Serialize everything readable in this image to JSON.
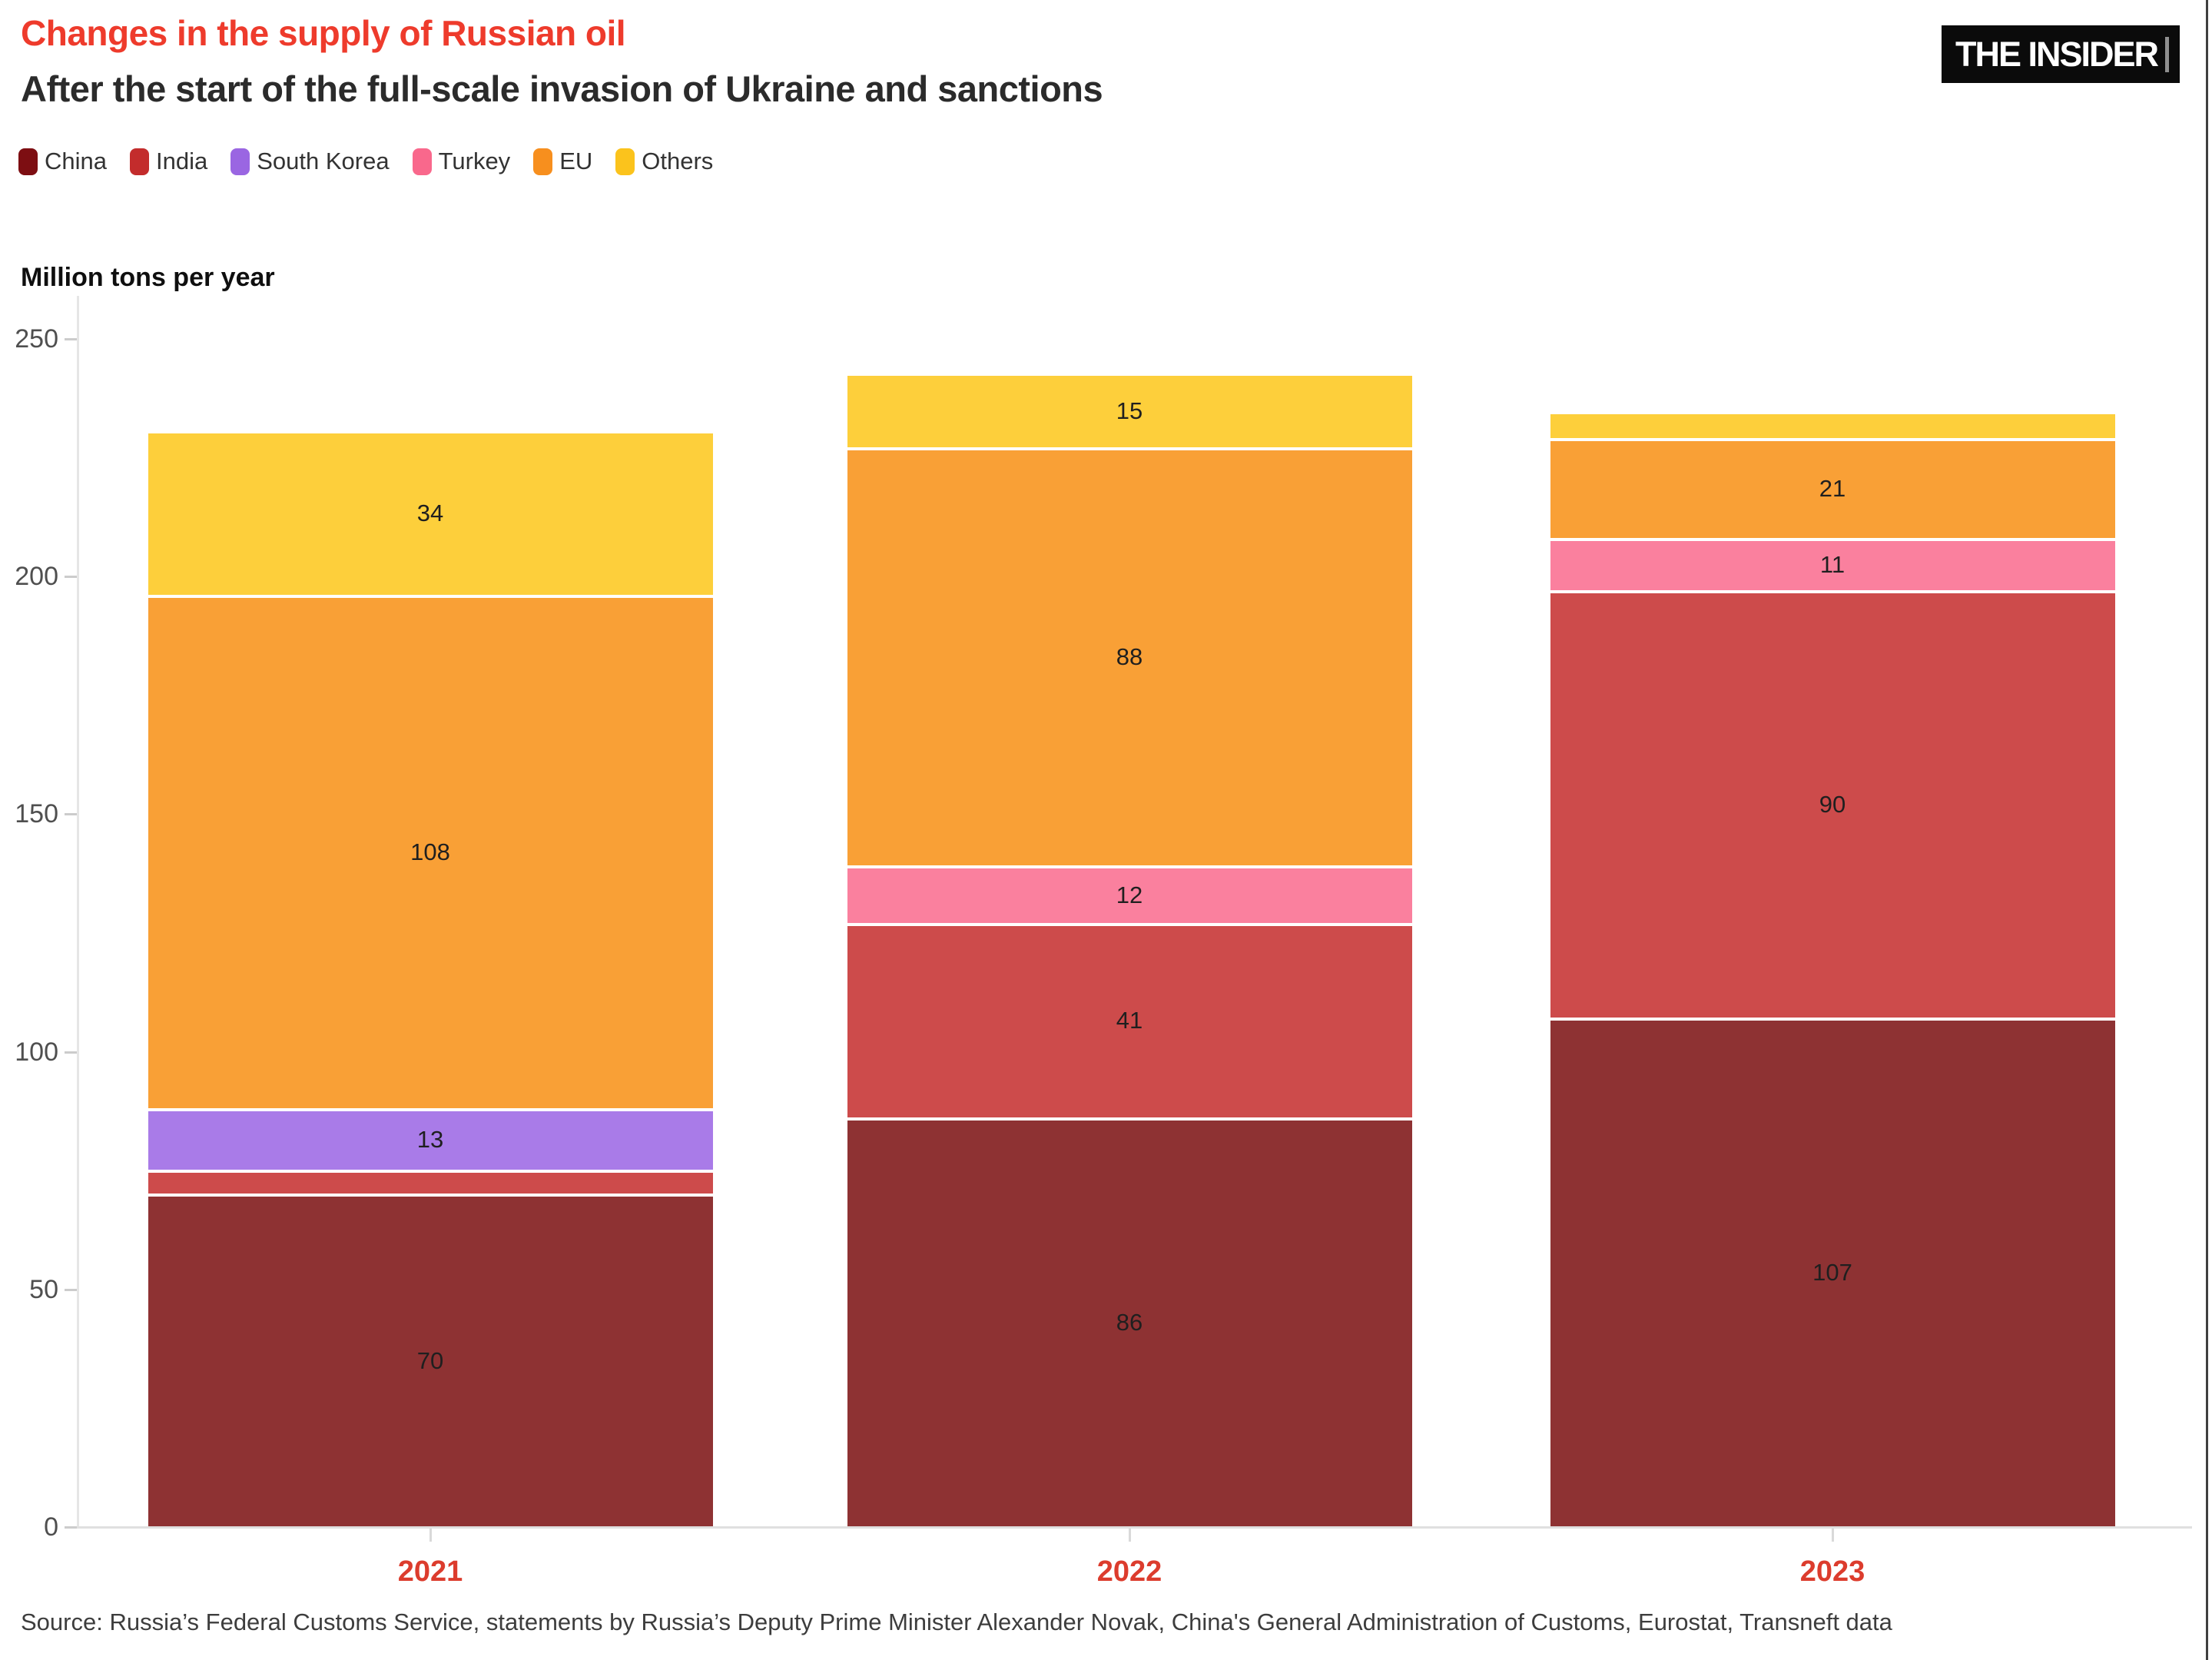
{
  "header": {
    "title": "Changes in the supply of Russian oil",
    "subtitle": "After the start of the full-scale invasion of Ukraine and sanctions",
    "logo_text": "THE INSIDER"
  },
  "colors": {
    "title_red": "#EE3B2C",
    "x_label_red": "#DC3C2D"
  },
  "legend": [
    {
      "label": "China",
      "color": "#7D0E12"
    },
    {
      "label": "India",
      "color": "#C32C2C"
    },
    {
      "label": "South Korea",
      "color": "#9A66E2"
    },
    {
      "label": "Turkey",
      "color": "#F9688C"
    },
    {
      "label": "EU",
      "color": "#F78F1E"
    },
    {
      "label": "Others",
      "color": "#FBC31C"
    }
  ],
  "chart_data": {
    "type": "bar",
    "stacked": true,
    "title": "Changes in the supply of Russian oil",
    "subtitle": "After the start of the full-scale invasion of Ukraine and sanctions",
    "ylabel": "Million tons per year",
    "xlabel": "",
    "categories": [
      "2021",
      "2022",
      "2023"
    ],
    "series": [
      {
        "name": "China",
        "bar_color": "#8E3233",
        "values": [
          70,
          86,
          107
        ]
      },
      {
        "name": "India",
        "bar_color": "#CD4B4B",
        "values": [
          5,
          41,
          90
        ]
      },
      {
        "name": "South Korea",
        "bar_color": "#A97BE8",
        "values": [
          13,
          0,
          0
        ]
      },
      {
        "name": "Turkey",
        "bar_color": "#FA809E",
        "values": [
          0,
          12,
          11
        ]
      },
      {
        "name": "EU",
        "bar_color": "#F9A036",
        "values": [
          108,
          88,
          21
        ]
      },
      {
        "name": "Others",
        "bar_color": "#FDCF3B",
        "values": [
          34,
          15,
          5
        ]
      }
    ],
    "yticks": [
      0,
      50,
      100,
      150,
      200,
      250
    ],
    "ylim": [
      0,
      250
    ],
    "grid": false,
    "legend_position": "top",
    "value_label_min": 10
  },
  "source": "Source: Russia’s Federal Customs Service, statements by Russia’s Deputy Prime Minister Alexander Novak, China's General Administration of Customs, Eurostat, Transneft data"
}
